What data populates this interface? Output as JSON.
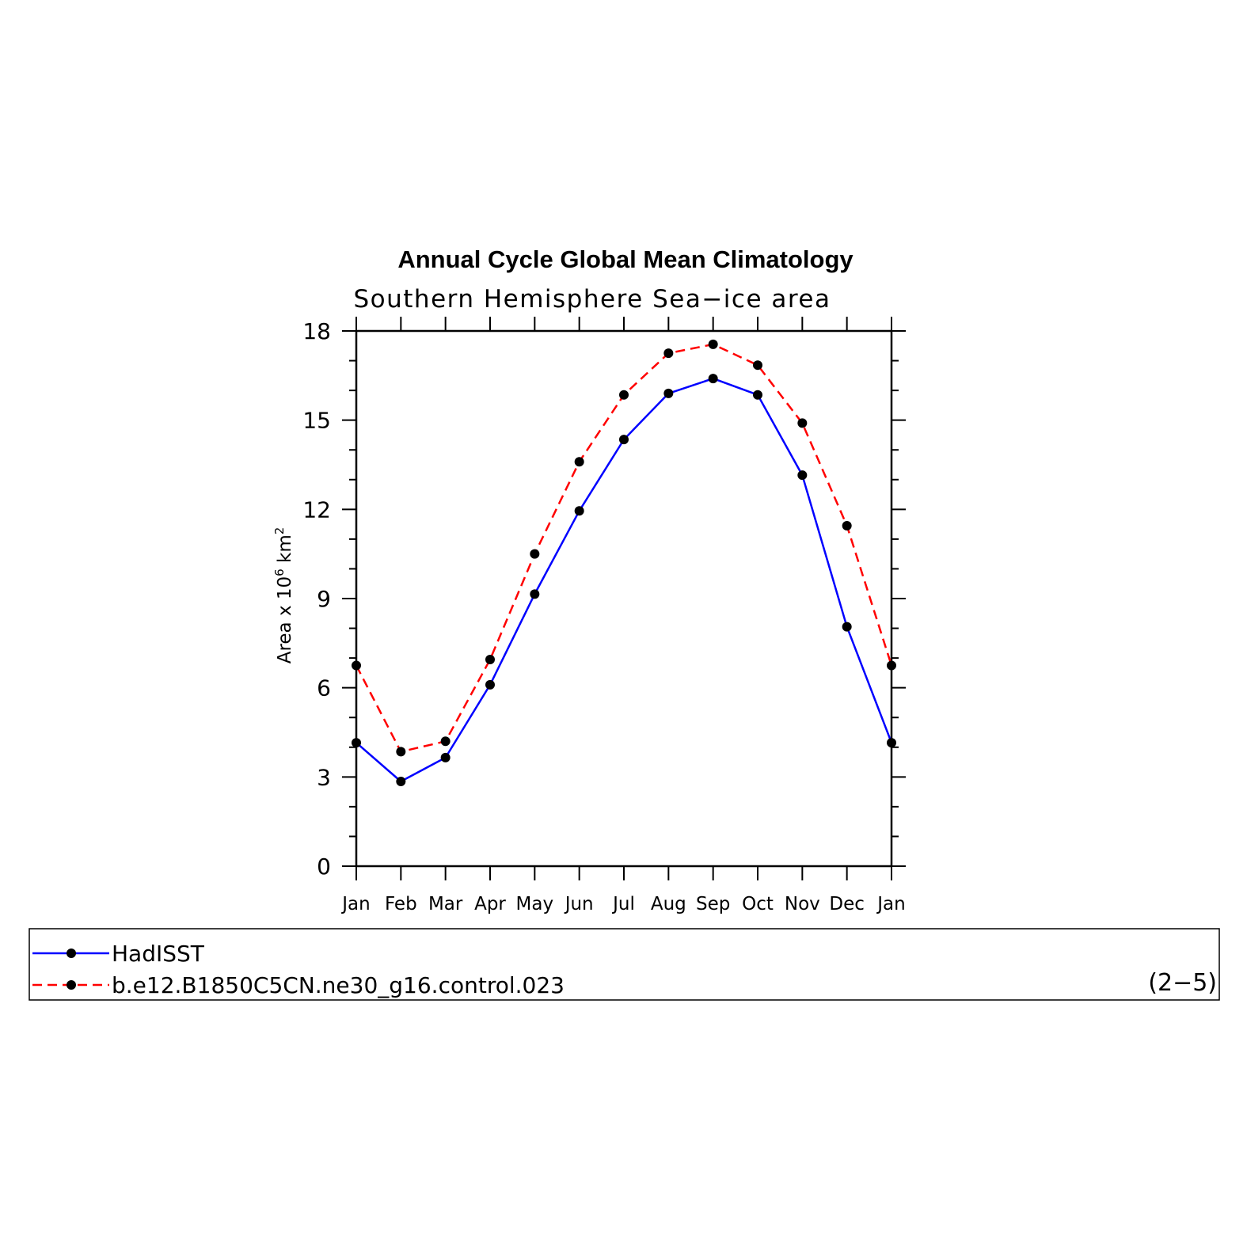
{
  "chart_data": {
    "type": "line",
    "title": "Annual Cycle Global Mean Climatology",
    "subtitle": "Southern Hemisphere Sea−ice area",
    "ylabel": {
      "base": "Area x 10",
      "exp1": "6",
      "mid": " km",
      "exp2": "2"
    },
    "xlabel": "",
    "ylim": [
      0,
      18
    ],
    "yticks": [
      0,
      3,
      6,
      9,
      12,
      15,
      18
    ],
    "yticks_minor_step": 1,
    "categories": [
      "Jan",
      "Feb",
      "Mar",
      "Apr",
      "May",
      "Jun",
      "Jul",
      "Aug",
      "Sep",
      "Oct",
      "Nov",
      "Dec",
      "Jan"
    ],
    "series": [
      {
        "name": "HadISST",
        "color": "#0000ff",
        "dash": "solid",
        "values": [
          4.15,
          2.85,
          3.65,
          6.1,
          9.15,
          11.95,
          14.35,
          15.9,
          16.4,
          15.85,
          13.15,
          8.05,
          4.15
        ]
      },
      {
        "name": "b.e12.B1850C5CN.ne30_g16.control.023",
        "color": "#ff0000",
        "dash": "dashed",
        "values": [
          6.75,
          3.85,
          4.2,
          6.95,
          10.5,
          13.6,
          15.85,
          17.25,
          17.55,
          16.85,
          14.9,
          11.45,
          6.75
        ]
      }
    ],
    "legend_position": "bottom"
  },
  "panel_label": "(2−5)"
}
